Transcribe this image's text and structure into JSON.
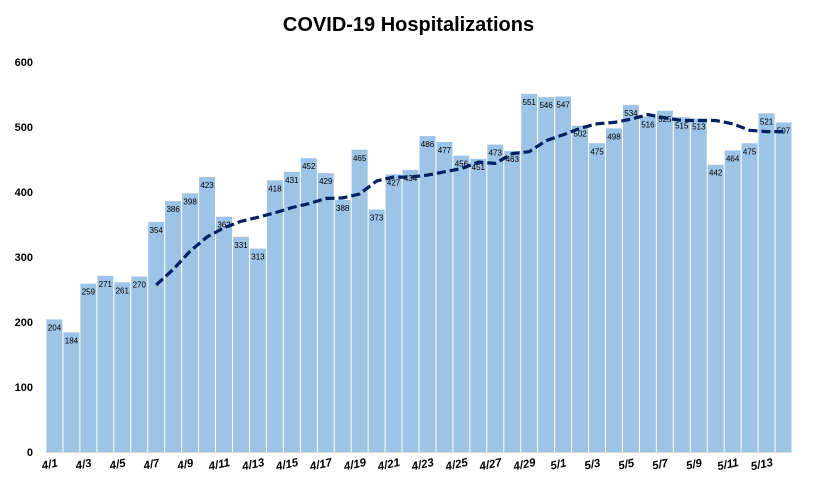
{
  "chart_data": {
    "type": "bar",
    "title": "COVID-19 Hospitalizations",
    "xlabel": "",
    "ylabel": "",
    "ylim": [
      0,
      600
    ],
    "yticks": [
      0,
      100,
      200,
      300,
      400,
      500,
      600
    ],
    "grid": false,
    "legend": "none",
    "colors": {
      "bar": "#9DC3E6",
      "trend": "#002060"
    },
    "categories": [
      "4/1",
      "4/2",
      "4/3",
      "4/4",
      "4/5",
      "4/6",
      "4/7",
      "4/8",
      "4/9",
      "4/10",
      "4/11",
      "4/12",
      "4/13",
      "4/14",
      "4/15",
      "4/16",
      "4/17",
      "4/18",
      "4/19",
      "4/20",
      "4/21",
      "4/22",
      "4/23",
      "4/24",
      "4/25",
      "4/26",
      "4/27",
      "4/28",
      "4/29",
      "4/30",
      "5/1",
      "5/2",
      "5/3",
      "5/4",
      "5/5",
      "5/6",
      "5/7",
      "5/8",
      "5/9",
      "5/10",
      "5/11",
      "5/12",
      "5/13",
      "5/14"
    ],
    "tick_labels": [
      "4/1",
      "4/3",
      "4/5",
      "4/7",
      "4/9",
      "4/11",
      "4/13",
      "4/15",
      "4/17",
      "4/19",
      "4/21",
      "4/23",
      "4/25",
      "4/27",
      "4/29",
      "5/1",
      "5/3",
      "5/5",
      "5/7",
      "5/9",
      "5/11",
      "5/13"
    ],
    "series": [
      {
        "type": "bar",
        "values": [
          204,
          184,
          259,
          271,
          261,
          270,
          354,
          386,
          398,
          423,
          362,
          331,
          313,
          418,
          431,
          452,
          429,
          388,
          465,
          373,
          427,
          434,
          486,
          477,
          456,
          451,
          473,
          463,
          551,
          546,
          547,
          502,
          475,
          498,
          534,
          516,
          525,
          515,
          513,
          442,
          464,
          475,
          521,
          507
        ]
      },
      {
        "type": "line",
        "style": "dashed",
        "values": [
          null,
          null,
          null,
          null,
          null,
          null,
          257,
          281,
          309,
          331,
          345,
          355,
          361,
          368,
          376,
          382,
          390,
          391,
          397,
          417,
          423,
          423,
          426,
          431,
          436,
          446,
          444,
          459,
          462,
          479,
          488,
          498,
          505,
          507,
          512,
          519,
          514,
          510,
          510,
          510,
          505,
          495,
          493,
          493
        ]
      }
    ]
  }
}
